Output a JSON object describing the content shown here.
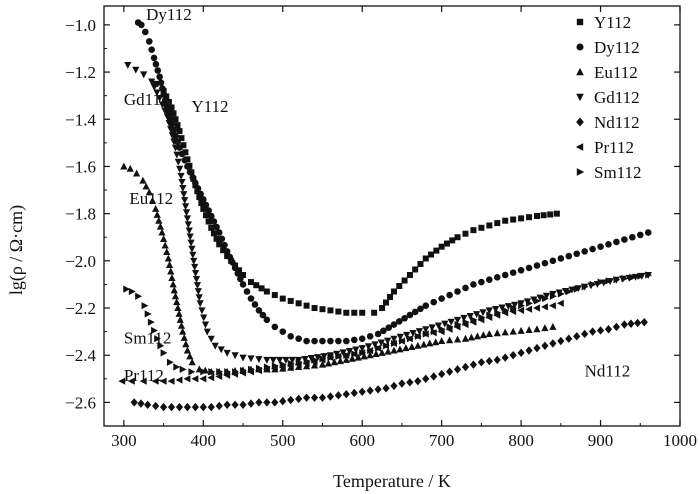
{
  "chart_data": {
    "type": "scatter",
    "title": "",
    "xlabel": "Temperature / K",
    "ylabel": "lg(ρ / Ω·cm)",
    "xlim": [
      275,
      1000
    ],
    "ylim": [
      -2.7,
      -0.92
    ],
    "xticks": [
      300,
      400,
      500,
      600,
      700,
      800,
      900,
      1000
    ],
    "yticks": [
      -1.0,
      -1.2,
      -1.4,
      -1.6,
      -1.8,
      -2.0,
      -2.2,
      -2.4,
      -2.6
    ],
    "xtick_labels": [
      "300",
      "400",
      "500",
      "600",
      "700",
      "800",
      "900",
      "1000"
    ],
    "ytick_labels": [
      "−1.0",
      "−1.2",
      "−1.4",
      "−1.6",
      "−1.8",
      "−2.0",
      "−2.2",
      "−2.4",
      "−2.6"
    ],
    "grid": false,
    "legend_position": "top-right",
    "series": [
      {
        "name": "Y112",
        "marker": "square",
        "x": [
          340,
          350,
          360,
          370,
          380,
          390,
          400,
          410,
          420,
          430,
          440,
          450,
          460,
          480,
          500,
          520,
          540,
          560,
          580,
          600,
          615,
          625,
          640,
          660,
          680,
          700,
          720,
          740,
          760,
          780,
          800,
          820,
          845
        ],
        "y": [
          -1.25,
          -1.28,
          -1.35,
          -1.45,
          -1.57,
          -1.68,
          -1.78,
          -1.86,
          -1.93,
          -1.98,
          -2.02,
          -2.06,
          -2.09,
          -2.13,
          -2.16,
          -2.18,
          -2.2,
          -2.21,
          -2.22,
          -2.22,
          -2.22,
          -2.2,
          -2.13,
          -2.06,
          -1.99,
          -1.94,
          -1.9,
          -1.87,
          -1.85,
          -1.83,
          -1.82,
          -1.81,
          -1.8
        ]
      },
      {
        "name": "Dy112",
        "marker": "circle",
        "x": [
          318,
          322,
          327,
          332,
          338,
          345,
          352,
          360,
          370,
          380,
          390,
          400,
          410,
          420,
          430,
          440,
          450,
          460,
          470,
          480,
          490,
          500,
          510,
          520,
          530,
          540,
          550,
          560,
          580,
          600,
          620,
          640,
          660,
          680,
          700,
          720,
          740,
          760,
          780,
          800,
          820,
          840,
          860,
          880,
          900,
          920,
          940,
          960
        ],
        "y": [
          -0.99,
          -1.0,
          -1.03,
          -1.07,
          -1.14,
          -1.22,
          -1.32,
          -1.42,
          -1.52,
          -1.6,
          -1.67,
          -1.74,
          -1.81,
          -1.88,
          -1.96,
          -2.03,
          -2.1,
          -2.16,
          -2.21,
          -2.25,
          -2.28,
          -2.3,
          -2.32,
          -2.33,
          -2.34,
          -2.34,
          -2.34,
          -2.34,
          -2.34,
          -2.33,
          -2.31,
          -2.27,
          -2.23,
          -2.19,
          -2.16,
          -2.13,
          -2.1,
          -2.08,
          -2.06,
          -2.04,
          -2.02,
          -2.0,
          -1.98,
          -1.96,
          -1.94,
          -1.92,
          -1.9,
          -1.88
        ]
      },
      {
        "name": "Eu112",
        "marker": "triangle-up",
        "x": [
          300,
          308,
          316,
          324,
          332,
          340,
          348,
          356,
          362,
          368,
          374,
          380,
          386,
          395,
          410,
          430,
          460,
          490,
          520,
          550,
          580,
          610,
          640,
          670,
          700,
          730,
          760,
          790,
          820,
          840
        ],
        "y": [
          -1.6,
          -1.61,
          -1.63,
          -1.66,
          -1.71,
          -1.78,
          -1.88,
          -1.99,
          -2.1,
          -2.2,
          -2.3,
          -2.38,
          -2.43,
          -2.46,
          -2.47,
          -2.47,
          -2.46,
          -2.46,
          -2.45,
          -2.44,
          -2.42,
          -2.4,
          -2.38,
          -2.36,
          -2.34,
          -2.33,
          -2.31,
          -2.3,
          -2.29,
          -2.28
        ]
      },
      {
        "name": "Gd112",
        "marker": "triangle-down",
        "x": [
          305,
          315,
          325,
          335,
          345,
          355,
          365,
          372,
          380,
          388,
          396,
          405,
          415,
          430,
          450,
          480,
          520,
          560,
          600,
          640,
          680,
          720,
          760,
          800,
          840,
          880,
          920,
          960
        ],
        "y": [
          -1.17,
          -1.19,
          -1.21,
          -1.24,
          -1.31,
          -1.39,
          -1.52,
          -1.64,
          -1.82,
          -2.0,
          -2.18,
          -2.3,
          -2.36,
          -2.39,
          -2.41,
          -2.42,
          -2.42,
          -2.4,
          -2.37,
          -2.33,
          -2.29,
          -2.25,
          -2.21,
          -2.18,
          -2.14,
          -2.11,
          -2.08,
          -2.06
        ]
      },
      {
        "name": "Nd112",
        "marker": "diamond",
        "x": [
          313,
          330,
          350,
          370,
          390,
          410,
          430,
          450,
          470,
          490,
          510,
          530,
          550,
          570,
          590,
          610,
          630,
          650,
          670,
          690,
          710,
          730,
          750,
          770,
          790,
          810,
          830,
          850,
          870,
          890,
          910,
          930,
          955
        ],
        "y": [
          -2.6,
          -2.61,
          -2.62,
          -2.62,
          -2.62,
          -2.62,
          -2.61,
          -2.61,
          -2.6,
          -2.6,
          -2.59,
          -2.58,
          -2.58,
          -2.57,
          -2.56,
          -2.55,
          -2.54,
          -2.52,
          -2.51,
          -2.49,
          -2.47,
          -2.45,
          -2.43,
          -2.42,
          -2.4,
          -2.38,
          -2.36,
          -2.34,
          -2.32,
          -2.3,
          -2.29,
          -2.27,
          -2.26
        ]
      },
      {
        "name": "Pr112",
        "marker": "triangle-left",
        "x": [
          298,
          310,
          325,
          340,
          360,
          380,
          400,
          420,
          440,
          460,
          480,
          500,
          520,
          540,
          560,
          580,
          600,
          620,
          640,
          660,
          680,
          700,
          720,
          740,
          760,
          780,
          800,
          820,
          840,
          850
        ],
        "y": [
          -2.51,
          -2.51,
          -2.51,
          -2.51,
          -2.51,
          -2.5,
          -2.5,
          -2.49,
          -2.48,
          -2.47,
          -2.46,
          -2.45,
          -2.44,
          -2.43,
          -2.41,
          -2.4,
          -2.39,
          -2.37,
          -2.35,
          -2.33,
          -2.31,
          -2.3,
          -2.28,
          -2.26,
          -2.24,
          -2.22,
          -2.21,
          -2.2,
          -2.19,
          -2.18
        ]
      },
      {
        "name": "Sm112",
        "marker": "triangle-right",
        "x": [
          303,
          310,
          318,
          326,
          334,
          342,
          350,
          358,
          366,
          374,
          385,
          400,
          420,
          440,
          460,
          480,
          500,
          520,
          540,
          560,
          580,
          600,
          620,
          640,
          660,
          680,
          700,
          720,
          740,
          760,
          780,
          800,
          820,
          840,
          860,
          880,
          900,
          920,
          940,
          960
        ],
        "y": [
          -2.12,
          -2.13,
          -2.15,
          -2.19,
          -2.26,
          -2.33,
          -2.39,
          -2.43,
          -2.45,
          -2.46,
          -2.47,
          -2.47,
          -2.47,
          -2.47,
          -2.46,
          -2.45,
          -2.44,
          -2.43,
          -2.42,
          -2.41,
          -2.4,
          -2.39,
          -2.37,
          -2.35,
          -2.33,
          -2.31,
          -2.29,
          -2.27,
          -2.25,
          -2.23,
          -2.21,
          -2.19,
          -2.17,
          -2.15,
          -2.13,
          -2.11,
          -2.09,
          -2.08,
          -2.07,
          -2.06
        ]
      }
    ],
    "annotations": [
      {
        "text": "Dy112",
        "x": 328,
        "y": -0.98
      },
      {
        "text": "Gd112",
        "x": 300,
        "y": -1.34
      },
      {
        "text": "Y112",
        "x": 385,
        "y": -1.37
      },
      {
        "text": "Eu112",
        "x": 307,
        "y": -1.76
      },
      {
        "text": "Sm112",
        "x": 300,
        "y": -2.35
      },
      {
        "text": "Pr112",
        "x": 300,
        "y": -2.51
      },
      {
        "text": "Nd112",
        "x": 880,
        "y": -2.49
      }
    ]
  }
}
